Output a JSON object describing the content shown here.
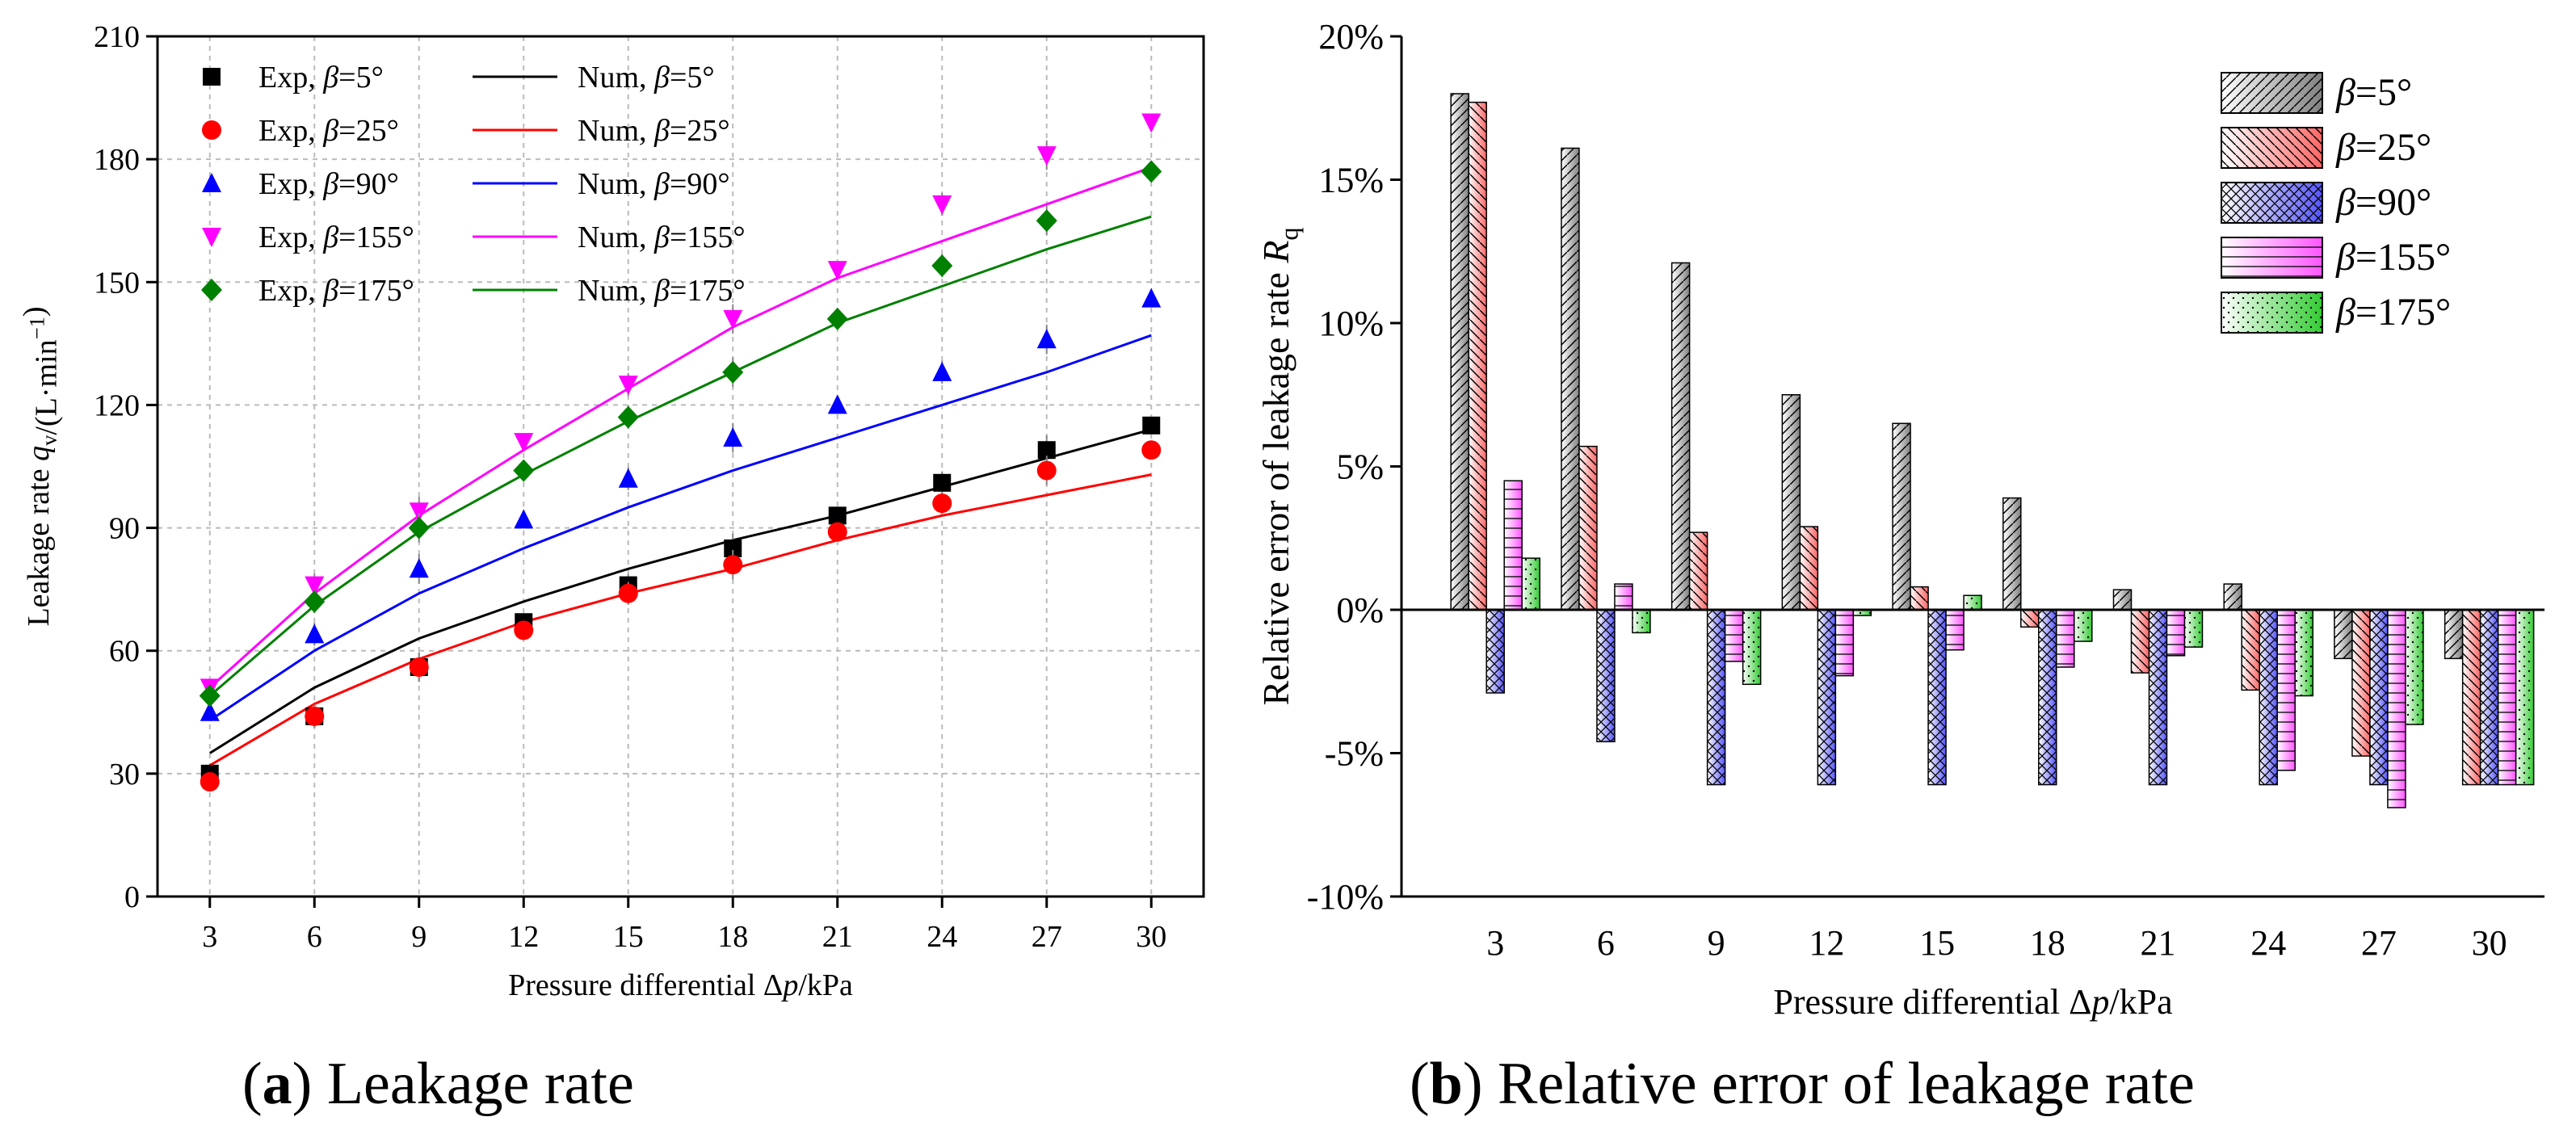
{
  "captions": {
    "a": {
      "letter": "a",
      "text": "Leakage rate"
    },
    "b": {
      "letter": "b",
      "text": "Relative error of leakage rate"
    }
  },
  "chart_data": [
    {
      "id": "a",
      "type": "scatter",
      "title": "",
      "xlabel": "Pressure differential Δp/kPa",
      "ylabel": "Leakage rate qv/(L·min⁻¹)",
      "xlim": [
        1.5,
        31.5
      ],
      "ylim": [
        0,
        210
      ],
      "x": [
        3,
        6,
        9,
        12,
        15,
        18,
        21,
        24,
        27,
        30
      ],
      "xticks": [
        "3",
        "6",
        "9",
        "12",
        "15",
        "18",
        "21",
        "24",
        "27",
        "30"
      ],
      "yticks": [
        0,
        30,
        60,
        90,
        120,
        150,
        180,
        210
      ],
      "grid": true,
      "legend_position": "top-left",
      "experimental": [
        {
          "name": "Exp, β=5°",
          "beta": "5°",
          "color": "#000000",
          "marker": "square",
          "values": [
            30,
            44,
            56,
            67,
            76,
            85,
            93,
            101,
            109,
            115
          ]
        },
        {
          "name": "Exp, β=25°",
          "beta": "25°",
          "color": "#ff0000",
          "marker": "circle",
          "values": [
            28,
            44,
            56,
            65,
            74,
            81,
            89,
            96,
            104,
            109
          ]
        },
        {
          "name": "Exp, β=90°",
          "beta": "90°",
          "color": "#0000ff",
          "marker": "triangle-up",
          "values": [
            45,
            64,
            80,
            92,
            102,
            112,
            120,
            128,
            136,
            146
          ]
        },
        {
          "name": "Exp, β=155°",
          "beta": "155°",
          "color": "#ff00ff",
          "marker": "triangle-down",
          "values": [
            51,
            76,
            94,
            111,
            125,
            141,
            153,
            169,
            181,
            189
          ]
        },
        {
          "name": "Exp, β=175°",
          "beta": "175°",
          "color": "#008000",
          "marker": "diamond",
          "values": [
            49,
            72,
            90,
            104,
            117,
            128,
            141,
            154,
            165,
            177
          ]
        }
      ],
      "numerical": [
        {
          "name": "Num, β=5°",
          "beta": "5°",
          "color": "#000000",
          "values": [
            35,
            51,
            63,
            72,
            80,
            87,
            93,
            100,
            107,
            114
          ]
        },
        {
          "name": "Num, β=25°",
          "beta": "25°",
          "color": "#ff0000",
          "values": [
            32,
            47,
            58,
            67,
            74,
            80,
            87,
            93,
            98,
            103
          ]
        },
        {
          "name": "Num, β=90°",
          "beta": "90°",
          "color": "#0000ff",
          "values": [
            43,
            60,
            74,
            85,
            95,
            104,
            112,
            120,
            128,
            137
          ]
        },
        {
          "name": "Num, β=155°",
          "beta": "155°",
          "color": "#ff00ff",
          "values": [
            51,
            74,
            93,
            109,
            124,
            139,
            151,
            160,
            169,
            178
          ]
        },
        {
          "name": "Num, β=175°",
          "beta": "175°",
          "color": "#008000",
          "values": [
            49,
            71,
            89,
            103,
            116,
            128,
            140,
            149,
            158,
            166
          ]
        }
      ]
    },
    {
      "id": "b",
      "type": "bar",
      "title": "",
      "xlabel": "Pressure differential Δp/kPa",
      "ylabel": "Relative error of leakage rate Rq",
      "categories": [
        "3",
        "6",
        "9",
        "12",
        "15",
        "18",
        "21",
        "24",
        "27",
        "30"
      ],
      "ylim": [
        -10,
        20
      ],
      "yticks": [
        "-10%",
        "-5%",
        "0%",
        "5%",
        "10%",
        "15%",
        "20%"
      ],
      "legend_position": "top-right",
      "series": [
        {
          "name": "β=5°",
          "beta": "5°",
          "color": "#808080",
          "pattern": "diagonal",
          "values": [
            18.0,
            16.1,
            12.1,
            7.5,
            6.5,
            3.9,
            0.7,
            0.9,
            -1.7,
            -1.7
          ]
        },
        {
          "name": "β=25°",
          "beta": "25°",
          "color": "#ff6666",
          "pattern": "back-diagonal",
          "values": [
            17.7,
            5.7,
            2.7,
            2.9,
            0.8,
            -0.6,
            -2.2,
            -2.8,
            -5.1,
            -6.1
          ]
        },
        {
          "name": "β=90°",
          "beta": "90°",
          "color": "#5555ff",
          "pattern": "crosshatch",
          "values": [
            -2.9,
            -4.6,
            -6.1,
            -6.1,
            -6.1,
            -6.1,
            -6.1,
            -6.1,
            -6.1,
            -6.1
          ]
        },
        {
          "name": "β=155°",
          "beta": "155°",
          "color": "#ff55ff",
          "pattern": "horizontal",
          "values": [
            4.5,
            0.9,
            -1.8,
            -2.3,
            -1.4,
            -2.0,
            -1.6,
            -5.6,
            -6.9,
            -6.1
          ]
        },
        {
          "name": "β=175°",
          "beta": "175°",
          "color": "#33cc33",
          "pattern": "dots",
          "values": [
            1.8,
            -0.8,
            -2.6,
            -0.2,
            0.5,
            -1.1,
            -1.3,
            -3.0,
            -4.0,
            -6.1
          ]
        }
      ]
    }
  ]
}
